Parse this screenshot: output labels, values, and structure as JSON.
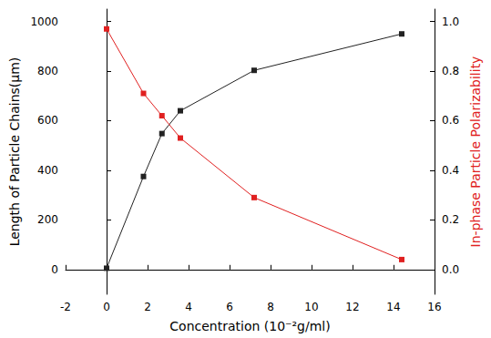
{
  "chart_data": {
    "type": "line",
    "xlabel": "Concentration (10⁻²g/ml)",
    "ylabel": "Length of Particle Chains(μm)",
    "y2label": "In-phase Particle Polarizability",
    "xlim": [
      -2,
      16
    ],
    "xticks": [
      -2,
      0,
      2,
      4,
      6,
      8,
      10,
      12,
      14,
      16
    ],
    "ylim": [
      -100,
      1050
    ],
    "yticks": [
      0,
      200,
      400,
      600,
      800,
      1000
    ],
    "y2lim": [
      -0.1,
      1.05
    ],
    "y2ticks": [
      {
        "value": 0,
        "label": "0.0"
      },
      0.2,
      0.4,
      0.6,
      0.8,
      {
        "value": 1,
        "label": "1.0"
      }
    ],
    "grid": false,
    "series": [
      {
        "name": "Length of Particle Chains",
        "color": "#222222",
        "marker": "square",
        "line_style": "solid",
        "x": [
          0,
          1.8,
          2.7,
          3.6,
          7.2,
          14.4
        ],
        "values": [
          5,
          375,
          548,
          640,
          803,
          950
        ]
      },
      {
        "name": "In-phase Particle Polarizability",
        "color": "#e02020",
        "marker": "square",
        "line_style": "solid",
        "axis": "y2",
        "x": [
          0,
          1.8,
          2.7,
          3.6,
          7.2,
          14.4
        ],
        "values": [
          0.97,
          0.71,
          0.62,
          0.53,
          0.29,
          0.04
        ]
      }
    ]
  }
}
